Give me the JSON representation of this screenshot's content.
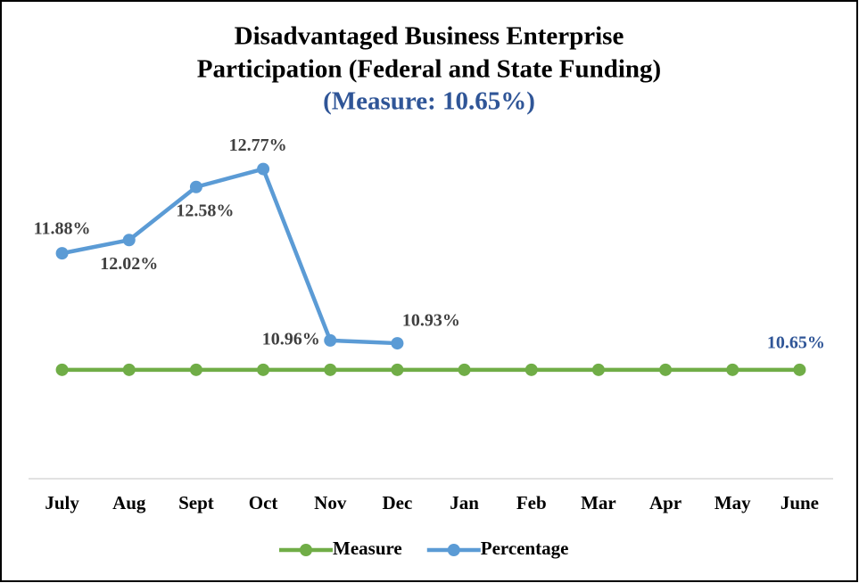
{
  "chart_data": {
    "type": "line",
    "title": [
      "Disadvantaged Business Enterprise",
      "Participation (Federal and State Funding)"
    ],
    "subtitle": "(Measure: 10.65%)",
    "categories": [
      "July",
      "Aug",
      "Sept",
      "Oct",
      "Nov",
      "Dec",
      "Jan",
      "Feb",
      "Mar",
      "Apr",
      "May",
      "June"
    ],
    "series": [
      {
        "name": "Measure",
        "color": "#70ad47",
        "values": [
          10.65,
          10.65,
          10.65,
          10.65,
          10.65,
          10.65,
          10.65,
          10.65,
          10.65,
          10.65,
          10.65,
          10.65
        ],
        "value_labels": [
          null,
          null,
          null,
          null,
          null,
          null,
          null,
          null,
          null,
          null,
          null,
          "10.65%"
        ]
      },
      {
        "name": "Percentage",
        "color": "#5b9bd5",
        "values": [
          11.88,
          12.02,
          12.58,
          12.77,
          10.96,
          10.93,
          null,
          null,
          null,
          null,
          null,
          null
        ],
        "value_labels": [
          "11.88%",
          "12.02%",
          "12.58%",
          "12.77%",
          "10.96%",
          "10.93%",
          null,
          null,
          null,
          null,
          null,
          null
        ]
      }
    ],
    "ylim": [
      9.5,
      13.5
    ],
    "legend": "bottom"
  }
}
